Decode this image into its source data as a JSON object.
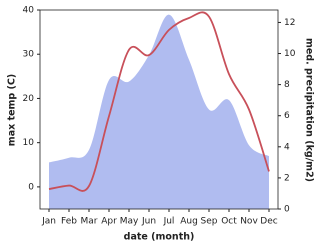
{
  "chart_data": {
    "type": "line",
    "categories": [
      "Jan",
      "Feb",
      "Mar",
      "Apr",
      "May",
      "Jun",
      "Jul",
      "Aug",
      "Sep",
      "Oct",
      "Nov",
      "Dec"
    ],
    "x_label": "date (month)",
    "y_label": "max temp (C)",
    "y2_label": "med. precipitation (kg/m2)",
    "ylim": [
      -5,
      40
    ],
    "yticks": [
      0,
      10,
      20,
      30,
      40
    ],
    "y2lim": [
      0,
      12.8
    ],
    "y2ticks": [
      0,
      2,
      4,
      6,
      8,
      10,
      12
    ],
    "series": [
      {
        "name": "med. precipitation",
        "style": "area",
        "axis": "y2",
        "color": "#b0bcf0",
        "values": [
          3.0,
          3.3,
          3.8,
          8.3,
          8.2,
          9.9,
          12.5,
          9.6,
          6.4,
          7.0,
          4.1,
          3.4
        ]
      },
      {
        "name": "max temp",
        "style": "line",
        "color": "#c8505a",
        "values": [
          -0.5,
          0.3,
          0.2,
          16,
          31,
          29.8,
          35.5,
          38.2,
          38.5,
          25.5,
          17.5,
          3.5
        ]
      }
    ]
  }
}
